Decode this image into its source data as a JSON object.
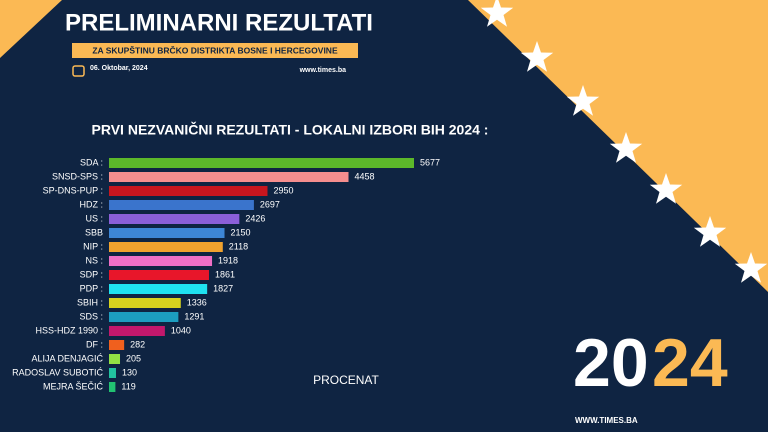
{
  "header": {
    "title": "PRELIMINARNI REZULTATI",
    "subtitle": "ZA SKUPŠTINU BRČKO DISTRIKTA BOSNE I HERCEGOVINE",
    "date": "06. Oktobar, 2024",
    "website": "www.times.ba"
  },
  "chart_data": {
    "type": "bar",
    "orientation": "horizontal",
    "title": "PRVI NEZVANIČNI REZULTATI - LOKALNI IZBORI BIH 2024 :",
    "x_label": "PROCENAT",
    "categories": [
      "SDA :",
      "SNSD-SPS :",
      "SP-DNS-PUP :",
      "HDZ :",
      "US :",
      "SBB",
      "NIP :",
      "NS :",
      "SDP :",
      "PDP :",
      "SBIH :",
      "SDS :",
      "HSS-HDZ 1990 :",
      "DF :",
      "ALIJA DENJAGIĆ",
      "RADOSLAV SUBOTIĆ",
      "MEJRA ŠEČIĆ"
    ],
    "values": [
      5677,
      4458,
      2950,
      2697,
      2426,
      2150,
      2118,
      1918,
      1861,
      1827,
      1336,
      1291,
      1040,
      282,
      205,
      130,
      119
    ],
    "colors": [
      "#5cb82a",
      "#f58e8e",
      "#c8161e",
      "#3a74cc",
      "#8b5fd8",
      "#3d86d6",
      "#f0a22e",
      "#ef6fc6",
      "#e8162a",
      "#1fe2f0",
      "#d6d21e",
      "#1c9ec0",
      "#c2186c",
      "#f0601e",
      "#92e044",
      "#22c2a0",
      "#22c272"
    ]
  },
  "footer": {
    "year_start": "20",
    "year_end": "24",
    "website": "WWW.TIMES.BA"
  }
}
